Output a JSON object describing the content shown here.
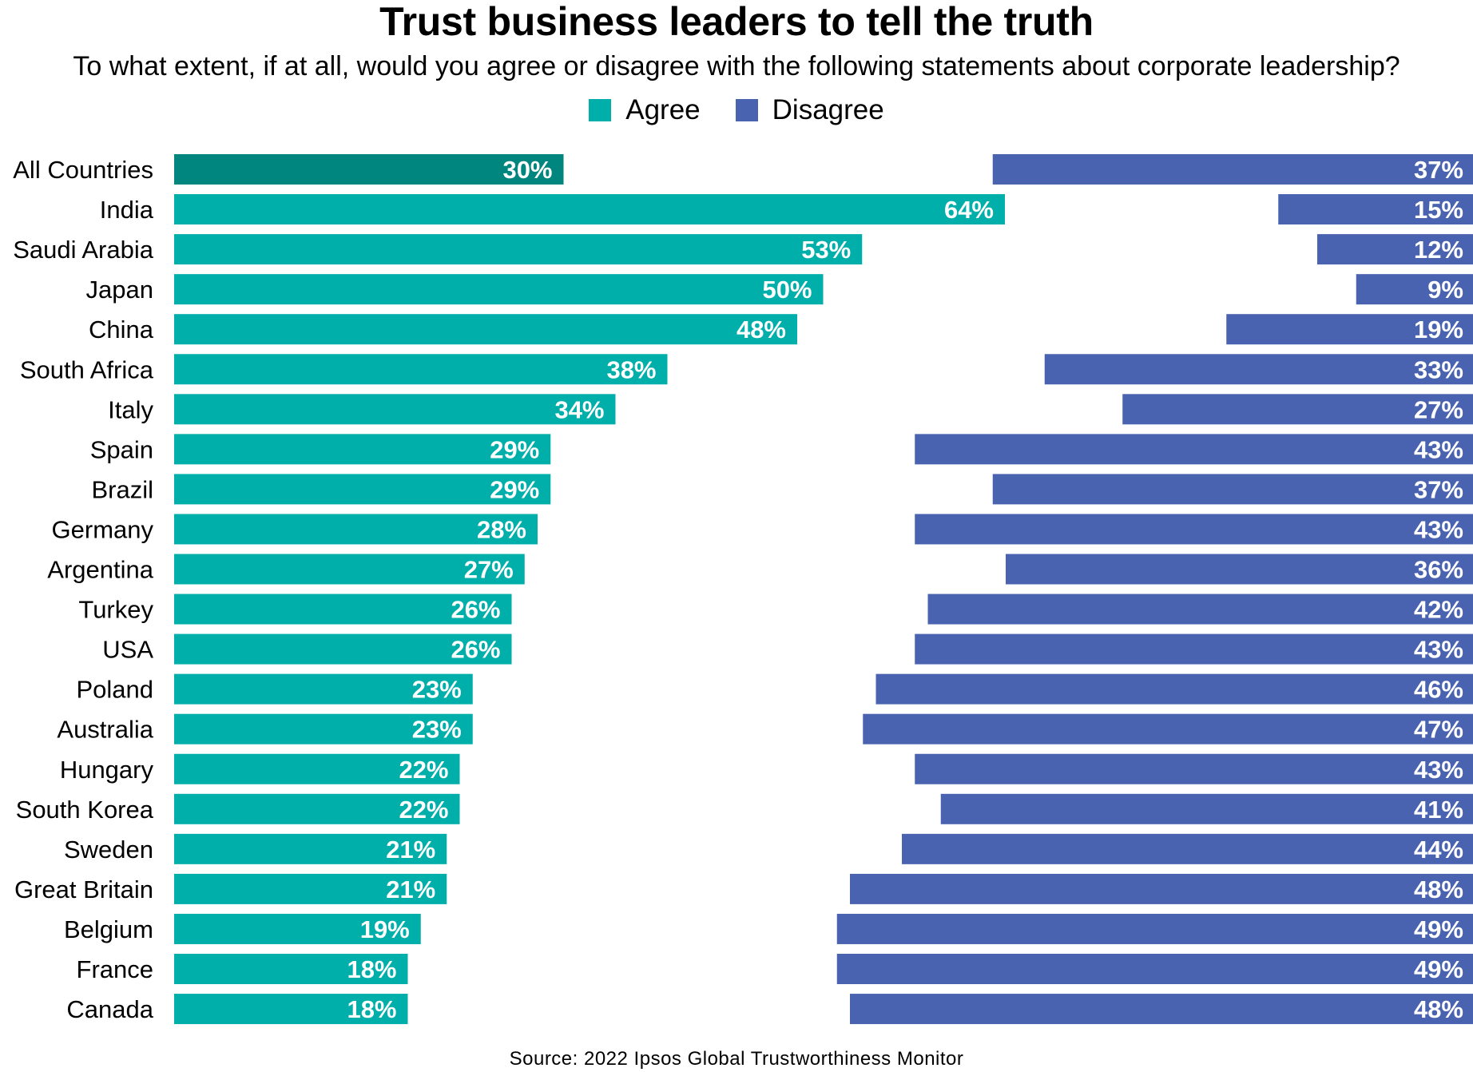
{
  "chart_data": {
    "type": "bar",
    "title": "Trust business leaders to tell the truth",
    "subtitle": "To what extent, if at all, would you agree or disagree with the following statements about corporate leadership?",
    "categories": [
      "All Countries",
      "India",
      "Saudi Arabia",
      "Japan",
      "China",
      "South Africa",
      "Italy",
      "Spain",
      "Brazil",
      "Germany",
      "Argentina",
      "Turkey",
      "USA",
      "Poland",
      "Australia",
      "Hungary",
      "South Korea",
      "Sweden",
      "Great Britain",
      "Belgium",
      "France",
      "Canada"
    ],
    "series": [
      {
        "name": "Agree",
        "color": "#00afa9",
        "highlight_color": "#00857f",
        "values": [
          30,
          64,
          53,
          50,
          48,
          38,
          34,
          29,
          29,
          28,
          27,
          26,
          26,
          23,
          23,
          22,
          22,
          21,
          21,
          19,
          18,
          18
        ],
        "labels": [
          "30%",
          "64%",
          "53%",
          "50%",
          "48%",
          "38%",
          "34%",
          "29%",
          "29%",
          "28%",
          "27%",
          "26%",
          "26%",
          "23%",
          "23%",
          "22%",
          "22%",
          "21%",
          "21%",
          "19%",
          "18%",
          "18%"
        ]
      },
      {
        "name": "Disagree",
        "color": "#4a63b0",
        "values": [
          37,
          15,
          12,
          9,
          19,
          33,
          27,
          43,
          37,
          43,
          36,
          42,
          43,
          46,
          47,
          43,
          41,
          44,
          48,
          49,
          49,
          48
        ],
        "labels": [
          "37%",
          "15%",
          "12%",
          "9%",
          "19%",
          "33%",
          "27%",
          "43%",
          "37%",
          "43%",
          "36%",
          "42%",
          "43%",
          "46%",
          "47%",
          "43%",
          "41%",
          "44%",
          "48%",
          "49%",
          "49%",
          "48%"
        ]
      }
    ],
    "xlim": [
      0,
      100
    ],
    "legend_position": "top-center",
    "source": "Source: 2022 Ipsos Global Trustworthiness Monitor"
  }
}
